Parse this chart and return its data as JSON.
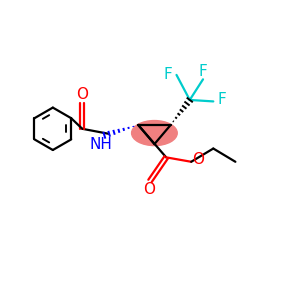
{
  "background": "#ffffff",
  "atom_colors": {
    "O": "#ff0000",
    "N": "#0000ff",
    "F": "#00cccc",
    "C": "#000000"
  },
  "highlight_color": "#f08080",
  "lw": 1.6,
  "fontsize": 10
}
